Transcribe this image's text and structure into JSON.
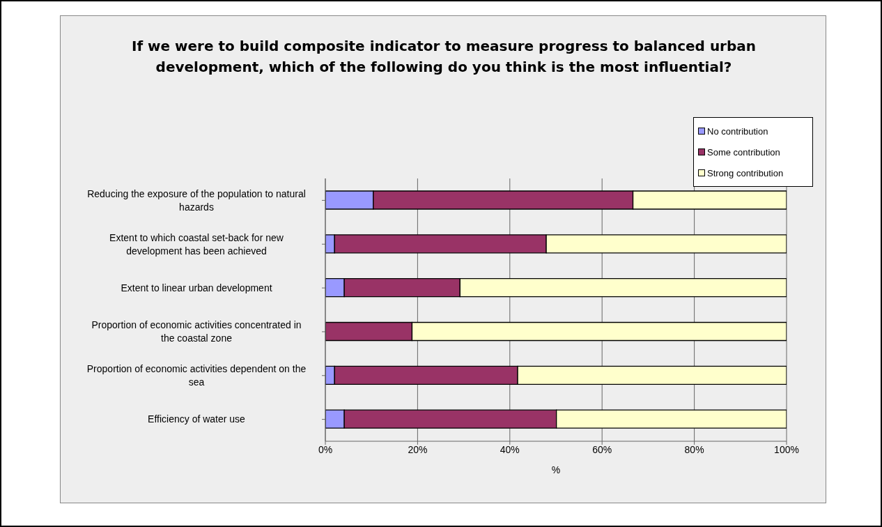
{
  "chart_data": {
    "type": "bar",
    "orientation": "horizontal",
    "stacked": true,
    "title": "If we were to build composite indicator to measure progress to balanced urban development, which of the following do you think is the most influential?",
    "xlabel": "%",
    "categories": [
      "Reducing the exposure of the population to natural hazards",
      "Extent to which coastal set-back for new development has been achieved",
      "Extent to linear urban development",
      "Proportion of economic activities concentrated in the coastal zone",
      "Proportion of economic activities dependent on the sea",
      "Efficiency of water use"
    ],
    "series": [
      {
        "name": "No contribution",
        "color": "#9999ff",
        "values": [
          10.4,
          2.0,
          4.1,
          0,
          2.0,
          4.1
        ]
      },
      {
        "name": "Some contribution",
        "color": "#993366",
        "values": [
          56.3,
          45.9,
          25.1,
          18.8,
          39.7,
          46.0
        ]
      },
      {
        "name": "Strong contribution",
        "color": "#ffffcc",
        "values": [
          33.3,
          52.1,
          70.8,
          81.2,
          58.3,
          49.9
        ]
      }
    ],
    "xlim": [
      0,
      100
    ],
    "xticks": [
      {
        "value": 0,
        "label": "0%"
      },
      {
        "value": 20,
        "label": "20%"
      },
      {
        "value": 40,
        "label": "40%"
      },
      {
        "value": 60,
        "label": "60%"
      },
      {
        "value": 80,
        "label": "80%"
      },
      {
        "value": 100,
        "label": "100%"
      }
    ],
    "grid": "x",
    "legend": "top right"
  }
}
